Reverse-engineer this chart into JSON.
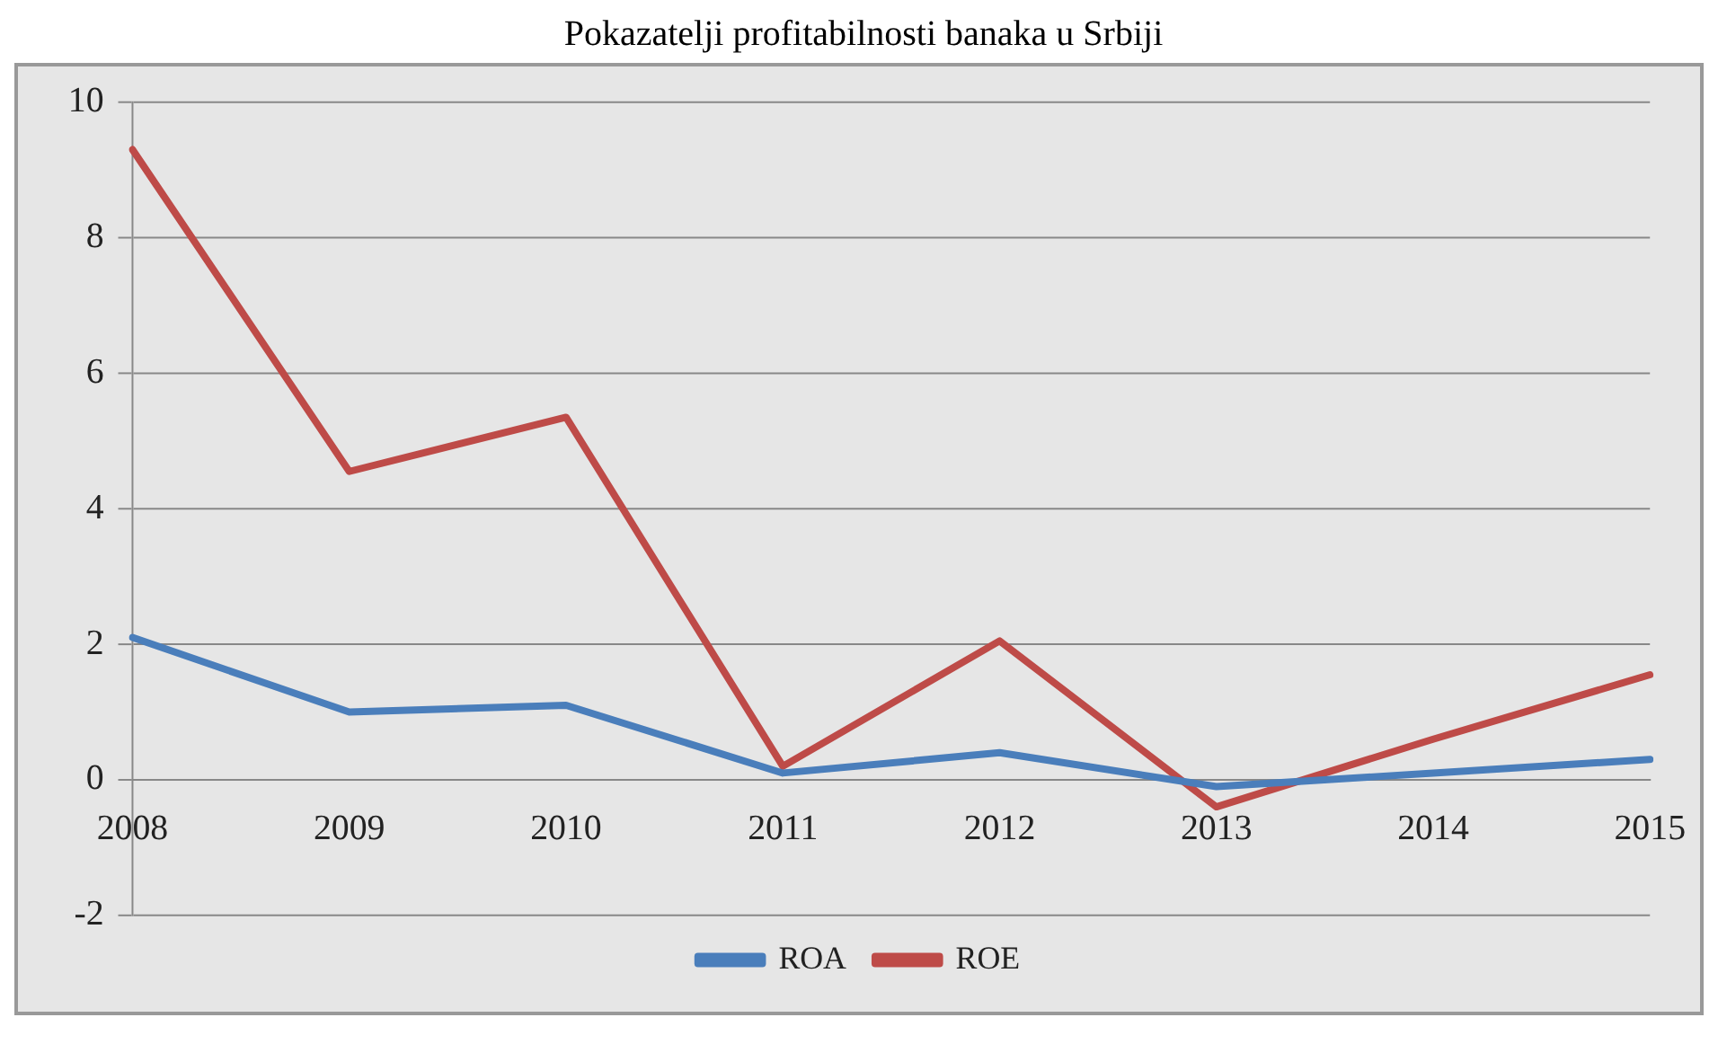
{
  "chart_data": {
    "type": "line",
    "title": "Pokazatelji profitabilnosti banaka u Srbiji",
    "categories": [
      "2008",
      "2009",
      "2010",
      "2011",
      "2012",
      "2013",
      "2014",
      "2015"
    ],
    "series": [
      {
        "name": "ROA",
        "color": "#4a7ebb",
        "values": [
          2.1,
          1.0,
          1.1,
          0.1,
          0.4,
          -0.1,
          0.1,
          0.3
        ]
      },
      {
        "name": "ROE",
        "color": "#be4b48",
        "values": [
          9.3,
          4.55,
          5.35,
          0.2,
          2.05,
          -0.4,
          0.6,
          1.55
        ]
      }
    ],
    "ylim": [
      -2,
      10
    ],
    "yticks": [
      -2,
      0,
      2,
      4,
      6,
      8,
      10
    ],
    "grid": "y",
    "legend": "bottom",
    "marker": "none",
    "line_style": "solid"
  }
}
